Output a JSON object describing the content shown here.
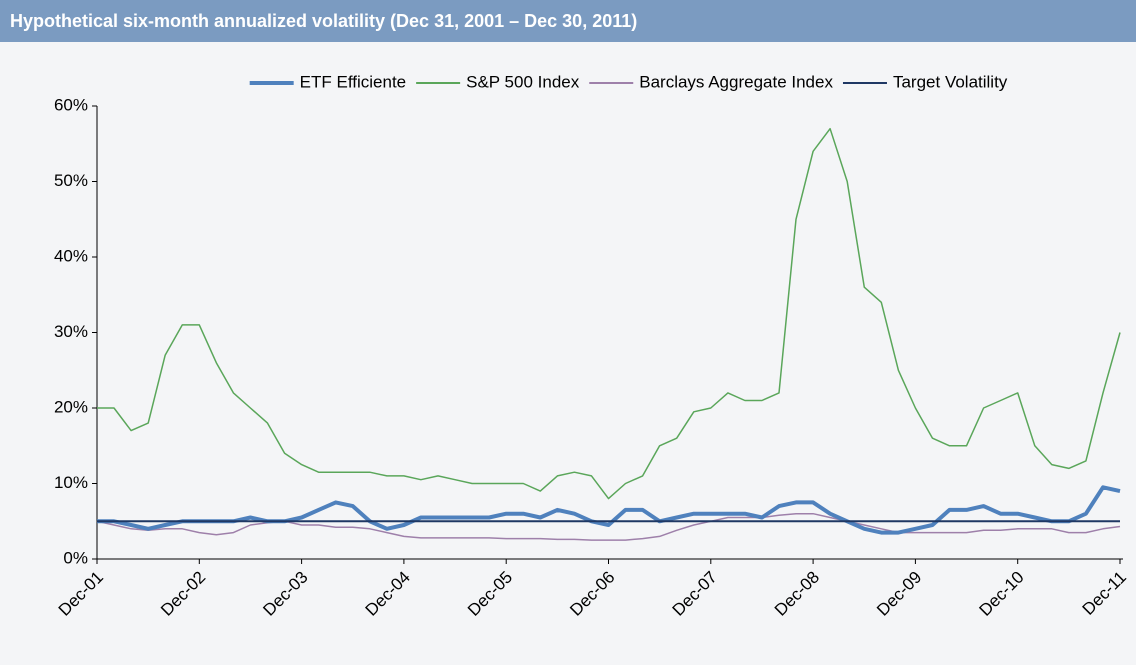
{
  "chart_data": {
    "type": "line",
    "title": "Hypothetical six-month annualized volatility (Dec 31, 2001 – Dec 30, 2011)",
    "categories": [
      "Dec-01",
      null,
      null,
      null,
      null,
      null,
      "Dec-02",
      null,
      null,
      null,
      null,
      null,
      "Dec-03",
      null,
      null,
      null,
      null,
      null,
      "Dec-04",
      null,
      null,
      null,
      null,
      null,
      "Dec-05",
      null,
      null,
      null,
      null,
      null,
      "Dec-06",
      null,
      null,
      null,
      null,
      null,
      "Dec-07",
      null,
      null,
      null,
      null,
      null,
      "Dec-08",
      null,
      null,
      null,
      null,
      null,
      "Dec-09",
      null,
      null,
      null,
      null,
      null,
      "Dec-10",
      null,
      null,
      null,
      null,
      null,
      "Dec-11"
    ],
    "series": [
      {
        "name": "ETF Efficiente",
        "color": "#4f81bd",
        "values": [
          5,
          5,
          4.5,
          4,
          4.5,
          5,
          5,
          5,
          5,
          5.5,
          5,
          5,
          5.5,
          6.5,
          7.5,
          7,
          5,
          4,
          4.5,
          5.5,
          5.5,
          5.5,
          5.5,
          5.5,
          6,
          6,
          5.5,
          6.5,
          6,
          5,
          4.5,
          6.5,
          6.5,
          5,
          5.5,
          6,
          6,
          6,
          6,
          5.5,
          7,
          7.5,
          7.5,
          6,
          5,
          4,
          3.5,
          3.5,
          4,
          4.5,
          6.5,
          6.5,
          7,
          6,
          6,
          5.5,
          5,
          5,
          6,
          9.5,
          9
        ]
      },
      {
        "name": "S&P 500 Index",
        "color": "#5aa65a",
        "values": [
          20,
          20,
          17,
          18,
          27,
          31,
          31,
          26,
          22,
          20,
          18,
          14,
          12.5,
          11.5,
          11.5,
          11.5,
          11.5,
          11,
          11,
          10.5,
          11,
          10.5,
          10,
          10,
          10,
          10,
          9,
          11,
          11.5,
          11,
          8,
          10,
          11,
          15,
          16,
          19.5,
          20,
          22,
          21,
          21,
          22,
          45,
          54,
          57,
          50,
          36,
          34,
          25,
          20,
          16,
          15,
          15,
          20,
          21,
          22,
          15,
          12.5,
          12,
          13,
          22,
          30
        ]
      },
      {
        "name": "Barclays Aggregate Index",
        "color": "#9e80aa",
        "values": [
          5,
          4.5,
          4,
          3.8,
          4,
          4,
          3.5,
          3.2,
          3.5,
          4.5,
          4.8,
          5,
          4.5,
          4.5,
          4.2,
          4.2,
          4,
          3.5,
          3,
          2.8,
          2.8,
          2.8,
          2.8,
          2.8,
          2.7,
          2.7,
          2.7,
          2.6,
          2.6,
          2.5,
          2.5,
          2.5,
          2.7,
          3,
          3.8,
          4.5,
          5,
          5.5,
          5.5,
          5.5,
          5.8,
          6,
          6,
          5.5,
          5,
          4.5,
          4,
          3.5,
          3.5,
          3.5,
          3.5,
          3.5,
          3.8,
          3.8,
          4,
          4,
          4,
          3.5,
          3.5,
          4,
          4.3
        ]
      },
      {
        "name": "Target Volatility",
        "color": "#1f3864",
        "values": [
          5,
          5,
          5,
          5,
          5,
          5,
          5,
          5,
          5,
          5,
          5,
          5,
          5,
          5,
          5,
          5,
          5,
          5,
          5,
          5,
          5,
          5,
          5,
          5,
          5,
          5,
          5,
          5,
          5,
          5,
          5,
          5,
          5,
          5,
          5,
          5,
          5,
          5,
          5,
          5,
          5,
          5,
          5,
          5,
          5,
          5,
          5,
          5,
          5,
          5,
          5,
          5,
          5,
          5,
          5,
          5,
          5,
          5,
          5,
          5,
          5
        ]
      }
    ],
    "ylim": [
      0,
      60
    ],
    "yticks": [
      {
        "value": 0,
        "label": "0%"
      },
      {
        "value": 10,
        "label": "10%"
      },
      {
        "value": 20,
        "label": "20%"
      },
      {
        "value": 30,
        "label": "30%"
      },
      {
        "value": 40,
        "label": "40%"
      },
      {
        "value": 50,
        "label": "50%"
      },
      {
        "value": 60,
        "label": "60%"
      }
    ],
    "legend": "top"
  }
}
